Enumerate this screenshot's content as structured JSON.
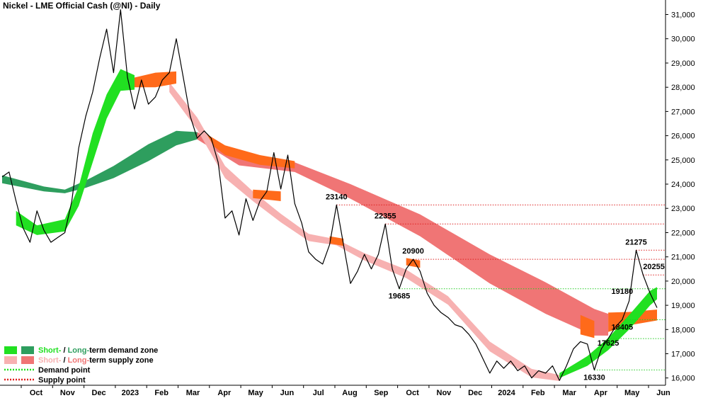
{
  "title": "Nickel - LME Official Cash (@NI) - Daily",
  "chart_data": {
    "type": "line",
    "title": "Nickel - LME Official Cash (@NI) - Daily",
    "ylim": [
      15700,
      31600
    ],
    "y_ticks": [
      {
        "value": 16000,
        "label": "16,000"
      },
      {
        "value": 17000,
        "label": "17,000"
      },
      {
        "value": 18000,
        "label": "18,000"
      },
      {
        "value": 19000,
        "label": "19,000"
      },
      {
        "value": 20000,
        "label": "20,000"
      },
      {
        "value": 21000,
        "label": "21,000"
      },
      {
        "value": 22000,
        "label": "22,000"
      },
      {
        "value": 23000,
        "label": "23,000"
      },
      {
        "value": 24000,
        "label": "24,000"
      },
      {
        "value": 25000,
        "label": "25,000"
      },
      {
        "value": 26000,
        "label": "26,000"
      },
      {
        "value": 27000,
        "label": "27,000"
      },
      {
        "value": 28000,
        "label": "28,000"
      },
      {
        "value": 29000,
        "label": "29,000"
      },
      {
        "value": 30000,
        "label": "30,000"
      },
      {
        "value": 31000,
        "label": "31,000"
      }
    ],
    "x_ticks": [
      "Oct",
      "Nov",
      "Dec",
      "2023",
      "Feb",
      "Mar",
      "Apr",
      "May",
      "Jun",
      "Jul",
      "Aug",
      "Sep",
      "Oct",
      "Nov",
      "Dec",
      "2024",
      "Feb",
      "Mar",
      "Apr",
      "May",
      "Jun"
    ],
    "series": [
      {
        "values": [
          [
            0,
            24300
          ],
          [
            1,
            24500
          ],
          [
            2,
            23300
          ],
          [
            3,
            22200
          ],
          [
            4,
            21600
          ],
          [
            5,
            22900
          ],
          [
            6,
            22100
          ],
          [
            7,
            21600
          ],
          [
            8,
            21800
          ],
          [
            9,
            22000
          ],
          [
            10,
            23300
          ],
          [
            11,
            25500
          ],
          [
            12,
            26800
          ],
          [
            13,
            27800
          ],
          [
            14,
            29200
          ],
          [
            15,
            30400
          ],
          [
            16,
            28600
          ],
          [
            17,
            31200
          ],
          [
            18,
            28400
          ],
          [
            19,
            27100
          ],
          [
            20,
            28300
          ],
          [
            21,
            27300
          ],
          [
            22,
            27600
          ],
          [
            23,
            28300
          ],
          [
            24,
            28600
          ],
          [
            25,
            30000
          ],
          [
            26,
            28400
          ],
          [
            27,
            26800
          ],
          [
            28,
            25900
          ],
          [
            29,
            26200
          ],
          [
            30,
            25900
          ],
          [
            31,
            24900
          ],
          [
            32,
            22600
          ],
          [
            33,
            22900
          ],
          [
            34,
            21900
          ],
          [
            35,
            23400
          ],
          [
            36,
            22500
          ],
          [
            37,
            23300
          ],
          [
            38,
            23700
          ],
          [
            39,
            25300
          ],
          [
            40,
            23800
          ],
          [
            41,
            25200
          ],
          [
            42,
            23200
          ],
          [
            43,
            22400
          ],
          [
            44,
            21200
          ],
          [
            45,
            20900
          ],
          [
            46,
            20700
          ],
          [
            47,
            21500
          ],
          [
            48,
            23140
          ],
          [
            49,
            21500
          ],
          [
            50,
            19900
          ],
          [
            51,
            20400
          ],
          [
            52,
            21100
          ],
          [
            53,
            20500
          ],
          [
            54,
            21100
          ],
          [
            55,
            22355
          ],
          [
            56,
            20500
          ],
          [
            57,
            19685
          ],
          [
            58,
            20500
          ],
          [
            59,
            20900
          ],
          [
            60,
            20400
          ],
          [
            61,
            19500
          ],
          [
            62,
            19000
          ],
          [
            63,
            18700
          ],
          [
            64,
            18500
          ],
          [
            65,
            18200
          ],
          [
            66,
            18100
          ],
          [
            67,
            17800
          ],
          [
            68,
            17400
          ],
          [
            69,
            16800
          ],
          [
            70,
            16200
          ],
          [
            71,
            16700
          ],
          [
            72,
            16400
          ],
          [
            73,
            16700
          ],
          [
            74,
            16300
          ],
          [
            75,
            16500
          ],
          [
            76,
            16000
          ],
          [
            77,
            16300
          ],
          [
            78,
            16200
          ],
          [
            79,
            16500
          ],
          [
            80,
            15900
          ],
          [
            81,
            16500
          ],
          [
            82,
            17200
          ],
          [
            83,
            17500
          ],
          [
            84,
            17400
          ],
          [
            85,
            16330
          ],
          [
            86,
            17200
          ],
          [
            87,
            17625
          ],
          [
            88,
            18100
          ],
          [
            89,
            18405
          ],
          [
            90,
            19180
          ],
          [
            91,
            21275
          ],
          [
            92,
            20255
          ],
          [
            93,
            19500
          ],
          [
            94,
            18900
          ]
        ]
      }
    ],
    "demand_points": [
      19685,
      18405,
      17625,
      16330
    ],
    "supply_points": [
      23140,
      22355,
      20900,
      21275,
      20255
    ],
    "annotations": [
      "23140",
      "22355",
      "20900",
      "19685",
      "21275",
      "20255",
      "19180",
      "18405",
      "17625",
      "16330"
    ]
  },
  "legend": {
    "items": [
      {
        "prefix": "Short-",
        "sep": " / ",
        "mid": "Long-",
        "suffix": "term demand zone",
        "color1": "#21e021",
        "color2": "#2e9e5e"
      },
      {
        "prefix": "Short-",
        "sep": " / ",
        "mid": "Long-",
        "suffix": "term supply zone",
        "color1": "#f7b1b1",
        "color2": "#f07575"
      },
      {
        "label": "Demand point",
        "color": "#21e021"
      },
      {
        "label": "Supply point",
        "color": "#e02020"
      }
    ]
  },
  "colors": {
    "price": "#000000",
    "short_demand": "#21e021",
    "long_demand": "#2e9e5e",
    "short_supply": "#f7b1b1",
    "long_supply": "#f07575",
    "transition": "#ff6a1a",
    "demand_line": "#21cc21",
    "supply_line": "#dd2020"
  }
}
